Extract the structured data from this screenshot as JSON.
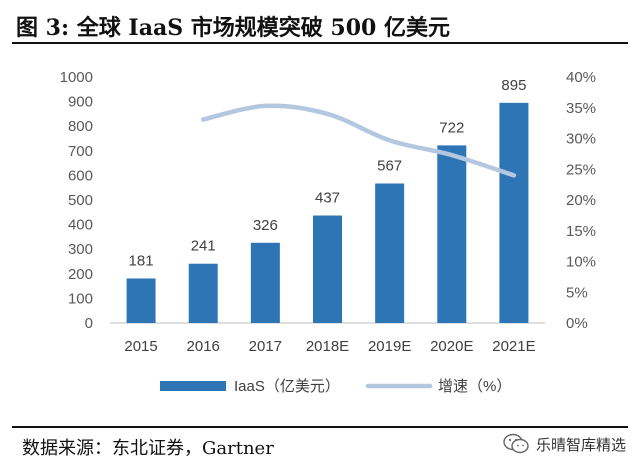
{
  "title": "图  3:  全球 IaaS 市场规模突破 500 亿美元",
  "source": "数据来源：东北证券，Gartner",
  "watermark": "乐晴智库精选",
  "chart_data": {
    "type": "bar",
    "categories": [
      "2015",
      "2016",
      "2017",
      "2018E",
      "2019E",
      "2020E",
      "2021E"
    ],
    "series": [
      {
        "name": "IaaS（亿美元）",
        "type": "bar",
        "axis": "left",
        "color": "#2e75b6",
        "values": [
          181,
          241,
          326,
          437,
          567,
          722,
          895
        ]
      },
      {
        "name": "增速（%）",
        "type": "line",
        "axis": "right",
        "color": "#b4c7e0",
        "values": [
          null,
          33.1,
          35.3,
          34.0,
          29.7,
          27.3,
          24.0
        ]
      }
    ],
    "y_left": {
      "min": 0,
      "max": 1000,
      "ticks": [
        "0",
        "100",
        "200",
        "300",
        "400",
        "500",
        "600",
        "700",
        "800",
        "900",
        "1000"
      ]
    },
    "y_right": {
      "min": 0,
      "max": 40,
      "ticks": [
        "0%",
        "5%",
        "10%",
        "15%",
        "20%",
        "25%",
        "30%",
        "35%",
        "40%"
      ]
    },
    "legend_position": "bottom",
    "grid": false
  }
}
